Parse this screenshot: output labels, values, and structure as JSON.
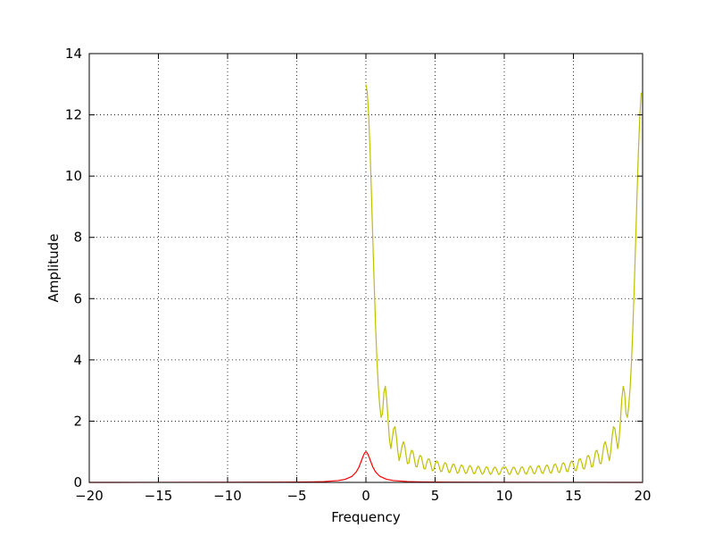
{
  "chart_data": {
    "type": "line",
    "xlabel": "Frequency",
    "ylabel": "Amplitude",
    "xlim": [
      -20,
      20
    ],
    "ylim": [
      0,
      14
    ],
    "xticks": [
      -20,
      -15,
      -10,
      -5,
      0,
      5,
      10,
      15,
      20
    ],
    "yticks": [
      0,
      2,
      4,
      6,
      8,
      10,
      12,
      14
    ],
    "grid": true,
    "legend": "none",
    "series": [
      {
        "color": "#ff0000",
        "x": [
          -20,
          -15,
          -10,
          -6,
          -4,
          -3,
          -2,
          -1.5,
          -1,
          -0.7,
          -0.5,
          -0.3,
          -0.2,
          -0.1,
          0,
          0.1,
          0.2,
          0.3,
          0.5,
          0.7,
          1,
          1.5,
          2,
          3,
          4,
          6,
          10,
          15,
          20
        ],
        "y": [
          0.0006,
          0.0011,
          0.0025,
          0.007,
          0.015,
          0.027,
          0.06,
          0.1,
          0.2,
          0.34,
          0.5,
          0.74,
          0.86,
          0.96,
          1.0,
          0.96,
          0.86,
          0.74,
          0.5,
          0.34,
          0.2,
          0.1,
          0.06,
          0.027,
          0.015,
          0.007,
          0.0025,
          0.0011,
          0.0006
        ]
      },
      {
        "color": "#bfbf00",
        "x": [
          0.0,
          0.1,
          0.2,
          0.3,
          0.4,
          0.5,
          0.6,
          0.7,
          0.8,
          0.9,
          1.0,
          1.1,
          1.2,
          1.3,
          1.4,
          1.5,
          1.6,
          1.7,
          1.8,
          1.9,
          2.0,
          2.1,
          2.2,
          2.3,
          2.4,
          2.5,
          2.6,
          2.7,
          2.8,
          2.9,
          3.0,
          3.1,
          3.2,
          3.3,
          3.4,
          3.5,
          3.6,
          3.7,
          3.8,
          3.9,
          4.0,
          4.1,
          4.2,
          4.3,
          4.4,
          4.5,
          4.6,
          4.7,
          4.8,
          4.9,
          5.0,
          5.1,
          5.2,
          5.3,
          5.4,
          5.5,
          5.6,
          5.7,
          5.8,
          5.9,
          6.0,
          6.1,
          6.2,
          6.3,
          6.4,
          6.5,
          6.6,
          6.7,
          6.8,
          6.9,
          7.0,
          7.1,
          7.2,
          7.3,
          7.4,
          7.5,
          7.6,
          7.7,
          7.8,
          7.9,
          8.0,
          8.1,
          8.2,
          8.3,
          8.4,
          8.5,
          8.6,
          8.7,
          8.8,
          8.9,
          9.0,
          9.1,
          9.2,
          9.3,
          9.4,
          9.5,
          9.6,
          9.7,
          9.8,
          9.9,
          10.0,
          10.1,
          10.2,
          10.3,
          10.4,
          10.5,
          10.6,
          10.7,
          10.8,
          10.9,
          11.0,
          11.1,
          11.2,
          11.3,
          11.4,
          11.5,
          11.6,
          11.7,
          11.8,
          11.9,
          12.0,
          12.1,
          12.2,
          12.3,
          12.4,
          12.5,
          12.6,
          12.7,
          12.8,
          12.9,
          13.0,
          13.1,
          13.2,
          13.3,
          13.4,
          13.5,
          13.6,
          13.7,
          13.8,
          13.9,
          14.0,
          14.1,
          14.2,
          14.3,
          14.4,
          14.5,
          14.6,
          14.7,
          14.8,
          14.9,
          15.0,
          15.1,
          15.2,
          15.3,
          15.4,
          15.5,
          15.6,
          15.7,
          15.8,
          15.9,
          16.0,
          16.1,
          16.2,
          16.3,
          16.4,
          16.5,
          16.6,
          16.7,
          16.8,
          16.9,
          17.0,
          17.1,
          17.2,
          17.3,
          17.4,
          17.5,
          17.6,
          17.7,
          17.8,
          17.9,
          18.0,
          18.1,
          18.2,
          18.3,
          18.4,
          18.5,
          18.6,
          18.7,
          18.8,
          18.9,
          19.0,
          19.1,
          19.2,
          19.3,
          19.4,
          19.5,
          19.6,
          19.7,
          19.8,
          19.9
        ],
        "y": [
          12.99,
          12.73,
          11.97,
          10.83,
          9.42,
          7.91,
          6.43,
          5.08,
          3.96,
          3.1,
          2.5,
          2.12,
          2.25,
          2.93,
          3.14,
          2.73,
          2.04,
          1.4,
          1.1,
          1.42,
          1.75,
          1.82,
          1.51,
          1.03,
          0.71,
          0.91,
          1.16,
          1.33,
          1.22,
          0.89,
          0.61,
          0.63,
          0.89,
          1.05,
          1.01,
          0.76,
          0.52,
          0.51,
          0.74,
          0.88,
          0.85,
          0.64,
          0.44,
          0.45,
          0.65,
          0.77,
          0.75,
          0.57,
          0.38,
          0.41,
          0.59,
          0.7,
          0.66,
          0.51,
          0.35,
          0.37,
          0.54,
          0.64,
          0.61,
          0.46,
          0.32,
          0.35,
          0.5,
          0.6,
          0.57,
          0.43,
          0.3,
          0.33,
          0.48,
          0.57,
          0.53,
          0.4,
          0.29,
          0.32,
          0.46,
          0.55,
          0.51,
          0.38,
          0.28,
          0.31,
          0.44,
          0.53,
          0.49,
          0.36,
          0.27,
          0.3,
          0.43,
          0.51,
          0.48,
          0.35,
          0.26,
          0.3,
          0.43,
          0.5,
          0.47,
          0.35,
          0.26,
          0.29,
          0.42,
          0.5,
          0.49,
          0.5,
          0.42,
          0.29,
          0.26,
          0.35,
          0.47,
          0.5,
          0.43,
          0.3,
          0.26,
          0.35,
          0.48,
          0.51,
          0.43,
          0.3,
          0.27,
          0.36,
          0.49,
          0.53,
          0.44,
          0.31,
          0.28,
          0.38,
          0.51,
          0.55,
          0.46,
          0.32,
          0.29,
          0.4,
          0.53,
          0.57,
          0.48,
          0.33,
          0.3,
          0.43,
          0.57,
          0.6,
          0.5,
          0.35,
          0.32,
          0.46,
          0.61,
          0.64,
          0.54,
          0.37,
          0.35,
          0.51,
          0.66,
          0.7,
          0.59,
          0.41,
          0.38,
          0.57,
          0.75,
          0.77,
          0.65,
          0.45,
          0.44,
          0.64,
          0.85,
          0.88,
          0.74,
          0.51,
          0.52,
          0.76,
          1.01,
          1.05,
          0.89,
          0.63,
          0.61,
          0.89,
          1.22,
          1.33,
          1.16,
          0.91,
          0.71,
          1.03,
          1.51,
          1.82,
          1.75,
          1.42,
          1.1,
          1.4,
          2.04,
          2.73,
          3.14,
          2.93,
          2.25,
          2.12,
          2.5,
          3.1,
          3.96,
          5.08,
          6.43,
          7.91,
          9.42,
          10.83,
          11.97,
          12.73
        ]
      }
    ]
  }
}
